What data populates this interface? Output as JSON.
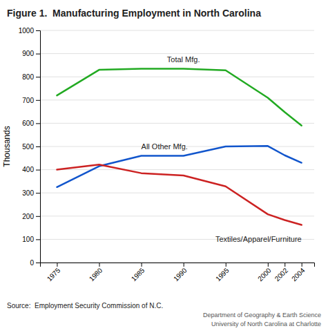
{
  "chart_data": {
    "type": "line",
    "title": "Figure 1.  Manufacturing Employment in North Carolina",
    "y_label": "Thousands",
    "x": [
      1975,
      1980,
      1985,
      1990,
      1995,
      2000,
      2002,
      2004
    ],
    "xlim": [
      1973,
      2005.5
    ],
    "xticks": [
      1975,
      1980,
      1985,
      1990,
      1995,
      2000,
      2002,
      2004
    ],
    "ylim": [
      0,
      1000
    ],
    "yticks": [
      0,
      100,
      200,
      300,
      400,
      500,
      600,
      700,
      800,
      900,
      1000
    ],
    "grid": true,
    "series": [
      {
        "name": "Total Mfg.",
        "color": "#22aa22",
        "values": [
          720,
          830,
          835,
          835,
          828,
          710,
          648,
          590
        ]
      },
      {
        "name": "All Other Mfg.",
        "color": "#1155cc",
        "values": [
          325,
          415,
          460,
          460,
          500,
          502,
          462,
          430
        ]
      },
      {
        "name": "Textiles/Apparel/Furniture",
        "color": "#cc2222",
        "values": [
          400,
          422,
          385,
          375,
          328,
          208,
          183,
          162
        ]
      }
    ],
    "annotations": [
      "Source:  Employment Security Commission of N.C.",
      "Department of Geography & Earth Science",
      "University of North Carolina at Charlotte"
    ]
  }
}
